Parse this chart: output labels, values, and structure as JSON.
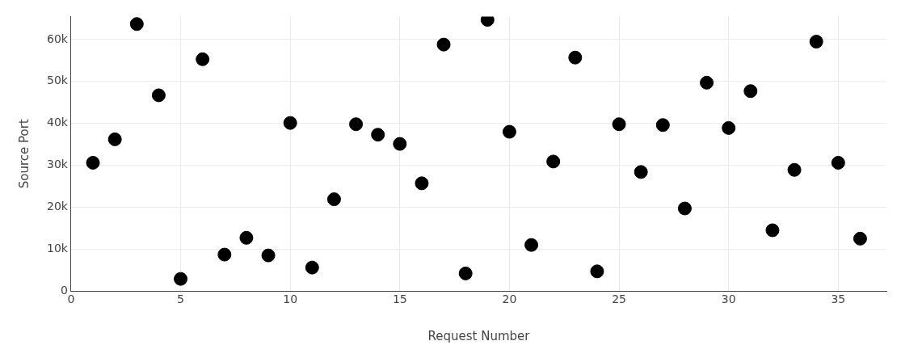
{
  "chart_data": {
    "type": "scatter",
    "xlabel": "Request Number",
    "ylabel": "Source Port",
    "x": [
      1,
      2,
      3,
      4,
      5,
      6,
      7,
      8,
      9,
      10,
      11,
      12,
      13,
      14,
      15,
      16,
      17,
      18,
      19,
      20,
      21,
      22,
      23,
      24,
      25,
      26,
      27,
      28,
      29,
      30,
      31,
      32,
      33,
      34,
      35,
      36
    ],
    "series": [
      {
        "color": "#000000",
        "values": [
          30600,
          36200,
          63700,
          46700,
          2900,
          55300,
          8700,
          12700,
          8500,
          40100,
          5600,
          21900,
          39800,
          37300,
          35100,
          25700,
          58800,
          4200,
          64700,
          38000,
          11000,
          30900,
          55700,
          4700,
          39800,
          28400,
          39600,
          19700,
          49700,
          38900,
          47700,
          14500,
          28900,
          59500,
          30600,
          12500
        ]
      }
    ],
    "xlim": [
      0,
      37.2
    ],
    "xticks": [
      0,
      5,
      10,
      15,
      20,
      25,
      30,
      35
    ],
    "ylim": [
      0,
      65500
    ],
    "yticks": [
      0,
      {
        "value": 10000,
        "label": "10k"
      },
      {
        "value": 20000,
        "label": "20k"
      },
      {
        "value": 30000,
        "label": "30k"
      },
      {
        "value": 40000,
        "label": "40k"
      },
      {
        "value": 50000,
        "label": "50k"
      },
      {
        "value": 60000,
        "label": "60k"
      }
    ],
    "grid": true,
    "marker": "circle",
    "legend": false
  }
}
